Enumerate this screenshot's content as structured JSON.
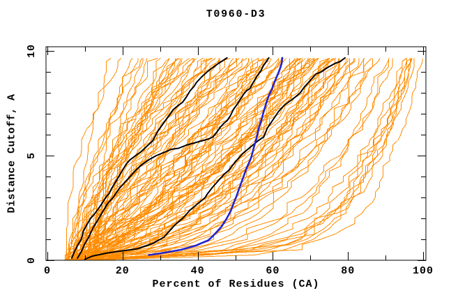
{
  "figure": {
    "title": "T0960-D3"
  },
  "chart_data": {
    "type": "line",
    "title": "T0960-D3",
    "xlabel": "Percent of Residues (CA)",
    "ylabel": "Distance Cutoff, A",
    "xlim": [
      0,
      100
    ],
    "ylim": [
      0,
      10
    ],
    "x_major_ticks": [
      0,
      20,
      40,
      60,
      80,
      100
    ],
    "x_minor_ticks": [
      10,
      30,
      50,
      70,
      90
    ],
    "y_major_ticks": [
      0,
      5,
      10
    ],
    "y_minor_ticks": [
      1,
      2,
      3,
      4,
      6,
      7,
      8,
      9
    ],
    "grid": false,
    "legend": false,
    "background": "#FFFFFF",
    "axis_color": "#000000",
    "description": "GDT-style plot: each curve shows percent of CA residues within a distance cutoff for one predicted model of target T0960-D3; orange = ensemble of server models, black = reference models, blue = highlighted model",
    "ensemble": {
      "name": "server-models",
      "color": "#FF8C00",
      "stroke_width": 1,
      "count": 110,
      "seed": 7,
      "y_top": 9.65,
      "y_step": 0.25,
      "start_min": 4.5,
      "start_max": 13,
      "top_min": 16,
      "top_max": 100,
      "p_min": 0.12,
      "p_max": 1.9
    },
    "highlighted_series": [
      {
        "name": "model-black-1",
        "color": "#000000",
        "stroke_width": 2,
        "points": [
          [
            6.5,
            0.1
          ],
          [
            7,
            0.33
          ],
          [
            8,
            0.7
          ],
          [
            9,
            1.0
          ],
          [
            9.6,
            1.4
          ],
          [
            10.5,
            1.7
          ],
          [
            11.5,
            2.0
          ],
          [
            12.5,
            2.2
          ],
          [
            13.3,
            2.4
          ],
          [
            14.5,
            2.7
          ],
          [
            15.5,
            3.0
          ],
          [
            16.5,
            3.2
          ],
          [
            17,
            3.4
          ],
          [
            18,
            3.7
          ],
          [
            19,
            4.0
          ],
          [
            20,
            4.3
          ],
          [
            21,
            4.6
          ],
          [
            22,
            4.8
          ],
          [
            23.5,
            5.0
          ],
          [
            25,
            5.2
          ],
          [
            26.5,
            5.45
          ],
          [
            28,
            5.7
          ],
          [
            28.6,
            5.9
          ],
          [
            29.5,
            6.2
          ],
          [
            30.5,
            6.45
          ],
          [
            31.5,
            6.7
          ],
          [
            32.3,
            6.9
          ],
          [
            33.5,
            7.2
          ],
          [
            34.5,
            7.35
          ],
          [
            36,
            7.55
          ],
          [
            37,
            7.8
          ],
          [
            38,
            8.1
          ],
          [
            39,
            8.3
          ],
          [
            39.7,
            8.5
          ],
          [
            41,
            8.75
          ],
          [
            42.5,
            9.0
          ],
          [
            44,
            9.2
          ],
          [
            45.5,
            9.4
          ],
          [
            46.8,
            9.55
          ],
          [
            47.8,
            9.67
          ]
        ]
      },
      {
        "name": "model-black-2",
        "color": "#000000",
        "stroke_width": 2,
        "points": [
          [
            8,
            0.1
          ],
          [
            9,
            0.4
          ],
          [
            10,
            0.8
          ],
          [
            11,
            1.1
          ],
          [
            12,
            1.5
          ],
          [
            13,
            1.8
          ],
          [
            14,
            2.1
          ],
          [
            15,
            2.4
          ],
          [
            16,
            2.7
          ],
          [
            17.5,
            3.0
          ],
          [
            19,
            3.4
          ],
          [
            20.5,
            3.7
          ],
          [
            22,
            4.0
          ],
          [
            23.5,
            4.3
          ],
          [
            25,
            4.55
          ],
          [
            27,
            4.8
          ],
          [
            29,
            5.0
          ],
          [
            31,
            5.15
          ],
          [
            33,
            5.3
          ],
          [
            34.9,
            5.35
          ],
          [
            37,
            5.5
          ],
          [
            39,
            5.6
          ],
          [
            41,
            5.7
          ],
          [
            43,
            5.8
          ],
          [
            44.1,
            5.9
          ],
          [
            45,
            6.1
          ],
          [
            46,
            6.35
          ],
          [
            47,
            6.55
          ],
          [
            47.8,
            6.66
          ],
          [
            48.7,
            6.9
          ],
          [
            49.5,
            7.2
          ],
          [
            50.5,
            7.45
          ],
          [
            51.5,
            7.74
          ],
          [
            52.3,
            7.95
          ],
          [
            53,
            8.1
          ],
          [
            53.9,
            8.2
          ],
          [
            54.8,
            8.5
          ],
          [
            55.8,
            8.8
          ],
          [
            56.8,
            9.05
          ],
          [
            57.5,
            9.3
          ],
          [
            58.3,
            9.5
          ],
          [
            58.9,
            9.67
          ]
        ]
      },
      {
        "name": "model-black-3",
        "color": "#000000",
        "stroke_width": 2,
        "points": [
          [
            10,
            0.05
          ],
          [
            12,
            0.2
          ],
          [
            16,
            0.35
          ],
          [
            20,
            0.45
          ],
          [
            24,
            0.55
          ],
          [
            28,
            0.8
          ],
          [
            31,
            1.1
          ],
          [
            32.5,
            1.4
          ],
          [
            34,
            1.7
          ],
          [
            36,
            2.0
          ],
          [
            38,
            2.4
          ],
          [
            40,
            2.7
          ],
          [
            42,
            3.0
          ],
          [
            42.5,
            3.15
          ],
          [
            44,
            3.5
          ],
          [
            45.5,
            3.8
          ],
          [
            47,
            4.1
          ],
          [
            48.3,
            4.3
          ],
          [
            50,
            4.7
          ],
          [
            52,
            5.1
          ],
          [
            54,
            5.4
          ],
          [
            56,
            5.7
          ],
          [
            57.6,
            5.9
          ],
          [
            58.5,
            6.3
          ],
          [
            60,
            6.7
          ],
          [
            61.5,
            7.1
          ],
          [
            63,
            7.4
          ],
          [
            64.5,
            7.6
          ],
          [
            66,
            7.8
          ],
          [
            67.3,
            8.0
          ],
          [
            68.5,
            8.3
          ],
          [
            70,
            8.6
          ],
          [
            71.5,
            8.9
          ],
          [
            72.9,
            9.0
          ],
          [
            74.5,
            9.2
          ],
          [
            76.5,
            9.4
          ],
          [
            78,
            9.5
          ],
          [
            79.2,
            9.67
          ]
        ]
      },
      {
        "name": "model-blue",
        "color": "#2424CE",
        "stroke_width": 2.6,
        "points": [
          [
            27,
            0.25
          ],
          [
            30,
            0.33
          ],
          [
            33,
            0.42
          ],
          [
            35.5,
            0.5
          ],
          [
            37.5,
            0.6
          ],
          [
            39.5,
            0.7
          ],
          [
            41,
            0.82
          ],
          [
            42.8,
            0.95
          ],
          [
            44,
            1.15
          ],
          [
            45.3,
            1.4
          ],
          [
            46.3,
            1.6
          ],
          [
            47.4,
            1.9
          ],
          [
            48.2,
            2.15
          ],
          [
            48.9,
            2.4
          ],
          [
            49.5,
            2.7
          ],
          [
            50.2,
            3.0
          ],
          [
            50.8,
            3.3
          ],
          [
            51.4,
            3.6
          ],
          [
            52,
            3.9
          ],
          [
            52.5,
            4.15
          ],
          [
            53,
            4.4
          ],
          [
            53.5,
            4.6
          ],
          [
            54,
            4.8
          ],
          [
            54.4,
            5.0
          ],
          [
            54.8,
            5.3
          ],
          [
            55.2,
            5.55
          ],
          [
            55.6,
            5.8
          ],
          [
            56,
            6.1
          ],
          [
            56.4,
            6.4
          ],
          [
            57,
            6.7
          ],
          [
            57.4,
            7.0
          ],
          [
            57.9,
            7.3
          ],
          [
            58.4,
            7.6
          ],
          [
            59,
            7.9
          ],
          [
            59.7,
            8.15
          ],
          [
            60.3,
            8.45
          ],
          [
            61,
            8.75
          ],
          [
            61.6,
            9.0
          ],
          [
            62.1,
            9.25
          ],
          [
            62.4,
            9.45
          ],
          [
            62.5,
            9.67
          ]
        ]
      }
    ]
  }
}
